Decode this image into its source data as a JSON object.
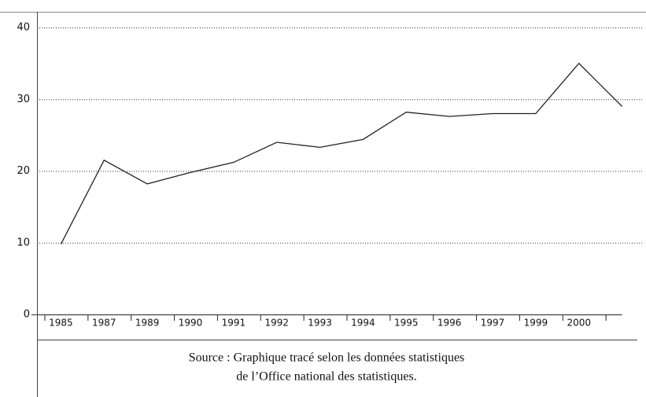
{
  "chart_data": {
    "type": "line",
    "categories": [
      "1985",
      "1987",
      "1989",
      "1990",
      "1991",
      "1992",
      "1993",
      "1994",
      "1995",
      "1996",
      "1997",
      "1999",
      "2000",
      null
    ],
    "values": [
      9.8,
      21.5,
      18.2,
      19.8,
      21.2,
      24,
      23.3,
      24.4,
      28.2,
      27.6,
      28,
      28,
      35,
      29
    ],
    "color": "#222222",
    "ylim": [
      0,
      40
    ],
    "yticks": [
      0,
      10,
      20,
      30,
      40
    ],
    "grid": true,
    "caption": [
      "Source : Graphique tracé selon les données statistiques",
      "de l’Office national des statistiques."
    ]
  }
}
